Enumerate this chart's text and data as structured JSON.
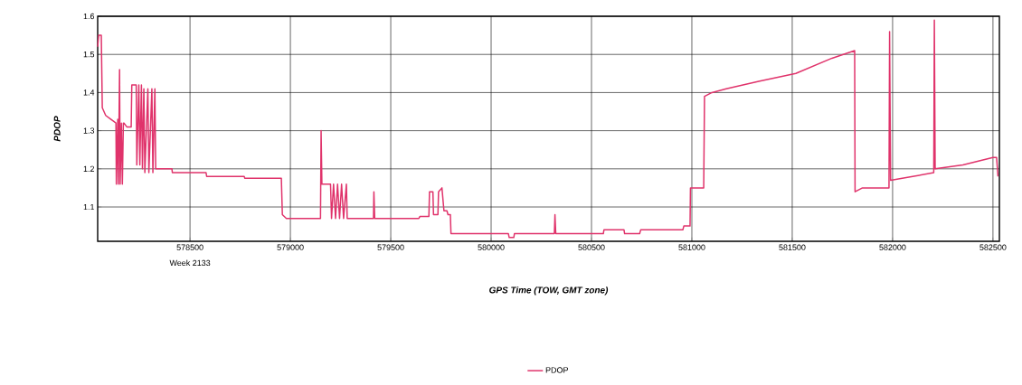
{
  "chart_data": {
    "type": "line",
    "xlabel": "GPS Time (TOW, GMT zone)",
    "ylabel": "PDOP",
    "annotations": [
      "Week 2133"
    ],
    "xlim": [
      578040,
      582532
    ],
    "ylim": [
      1.01,
      1.6
    ],
    "xticks": [
      578500,
      579000,
      579500,
      580000,
      580500,
      581000,
      581500,
      582000,
      582500
    ],
    "yticks": [
      1.1,
      1.2,
      1.3,
      1.4,
      1.5,
      1.6
    ],
    "grid": true,
    "legend": "bottom",
    "marker": "none",
    "line_style": "solid",
    "series": [
      {
        "name": "PDOP",
        "color": "#e0336b",
        "x": [
          578040,
          578045,
          578058,
          578063,
          578080,
          578105,
          578131,
          578133,
          578140,
          578143,
          578149,
          578152,
          578158,
          578163,
          578168,
          578171,
          578185,
          578207,
          578210,
          578232,
          578235,
          578245,
          578250,
          578258,
          578263,
          578270,
          578275,
          578290,
          578295,
          578310,
          578315,
          578325,
          578329,
          578410,
          578412,
          578580,
          578583,
          578770,
          578773,
          578955,
          578960,
          578980,
          579150,
          579153,
          579157,
          579200,
          579205,
          579215,
          579225,
          579235,
          579245,
          579255,
          579265,
          579279,
          579283,
          579414,
          579416,
          579420,
          579640,
          579645,
          579690,
          579693,
          579710,
          579713,
          579735,
          579738,
          579755,
          579765,
          579780,
          579785,
          579797,
          579800,
          580086,
          580090,
          580113,
          580116,
          580315,
          580318,
          580322,
          580559,
          580562,
          580662,
          580665,
          580740,
          580745,
          580955,
          580960,
          580991,
          580993,
          581059,
          581063,
          581100,
          581171,
          581338,
          581518,
          581698,
          581811,
          581813,
          581850,
          581982,
          581985,
          581990,
          582100,
          582205,
          582208,
          582212,
          582350,
          582500,
          582518,
          582525
        ],
        "values": [
          1.52,
          1.55,
          1.55,
          1.36,
          1.34,
          1.33,
          1.32,
          1.16,
          1.33,
          1.16,
          1.46,
          1.16,
          1.32,
          1.16,
          1.32,
          1.32,
          1.31,
          1.31,
          1.42,
          1.42,
          1.21,
          1.42,
          1.21,
          1.42,
          1.2,
          1.41,
          1.19,
          1.41,
          1.19,
          1.41,
          1.19,
          1.41,
          1.2,
          1.2,
          1.19,
          1.19,
          1.18,
          1.18,
          1.175,
          1.175,
          1.08,
          1.07,
          1.07,
          1.3,
          1.16,
          1.16,
          1.07,
          1.16,
          1.07,
          1.16,
          1.07,
          1.16,
          1.07,
          1.16,
          1.07,
          1.07,
          1.14,
          1.07,
          1.07,
          1.075,
          1.075,
          1.14,
          1.14,
          1.08,
          1.08,
          1.14,
          1.15,
          1.09,
          1.09,
          1.08,
          1.08,
          1.03,
          1.03,
          1.02,
          1.02,
          1.03,
          1.03,
          1.08,
          1.03,
          1.03,
          1.04,
          1.04,
          1.03,
          1.03,
          1.04,
          1.04,
          1.05,
          1.05,
          1.15,
          1.15,
          1.39,
          1.4,
          1.41,
          1.43,
          1.45,
          1.49,
          1.51,
          1.14,
          1.15,
          1.15,
          1.56,
          1.17,
          1.18,
          1.19,
          1.59,
          1.2,
          1.21,
          1.23,
          1.23,
          1.18
        ]
      }
    ]
  }
}
